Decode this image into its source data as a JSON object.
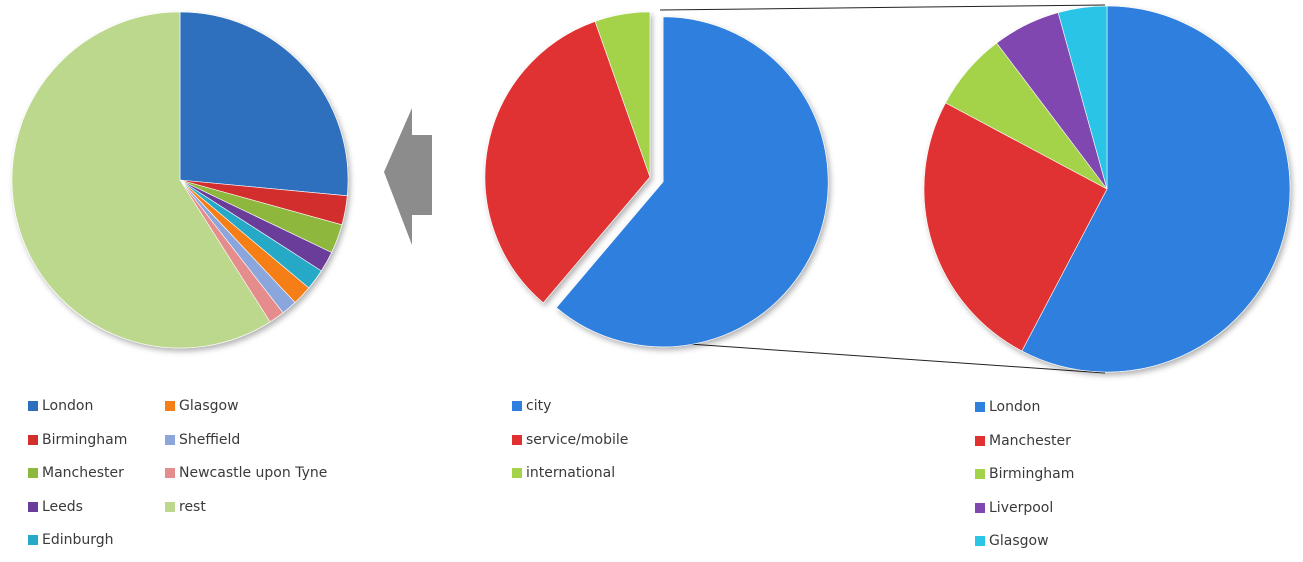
{
  "chart_data": [
    {
      "type": "pie",
      "title": "",
      "slices": [
        {
          "label": "London",
          "value": 26.5,
          "color": "#2e6fbd"
        },
        {
          "label": "Birmingham",
          "value": 2.8,
          "color": "#d32f2f"
        },
        {
          "label": "Manchester",
          "value": 2.8,
          "color": "#8db83e"
        },
        {
          "label": "Leeds",
          "value": 2.0,
          "color": "#6a3d9a"
        },
        {
          "label": "Edinburgh",
          "value": 2.0,
          "color": "#26a9c6"
        },
        {
          "label": "Glasgow",
          "value": 1.9,
          "color": "#f57f17"
        },
        {
          "label": "Sheffield",
          "value": 1.5,
          "color": "#8aa6dc"
        },
        {
          "label": "Newcastle upon Tyne",
          "value": 1.5,
          "color": "#e58c8c"
        },
        {
          "label": "rest",
          "value": 59.0,
          "color": "#bcd88c"
        }
      ]
    },
    {
      "type": "pie",
      "title": "",
      "slices": [
        {
          "label": "city",
          "value": 61.2,
          "color": "#2f7fde"
        },
        {
          "label": "service/mobile",
          "value": 33.4,
          "color": "#e03030"
        },
        {
          "label": "international",
          "value": 5.4,
          "color": "#a4d24a"
        }
      ]
    },
    {
      "type": "pie",
      "title": "",
      "slices": [
        {
          "label": "London",
          "value": 57.7,
          "color": "#2f7fde"
        },
        {
          "label": "Manchester",
          "value": 25.1,
          "color": "#e03030"
        },
        {
          "label": "Birmingham",
          "value": 6.9,
          "color": "#a4d24a"
        },
        {
          "label": "Liverpool",
          "value": 6.0,
          "color": "#8047b0"
        },
        {
          "label": "Glasgow",
          "value": 4.3,
          "color": "#2bc5e6"
        }
      ]
    }
  ]
}
